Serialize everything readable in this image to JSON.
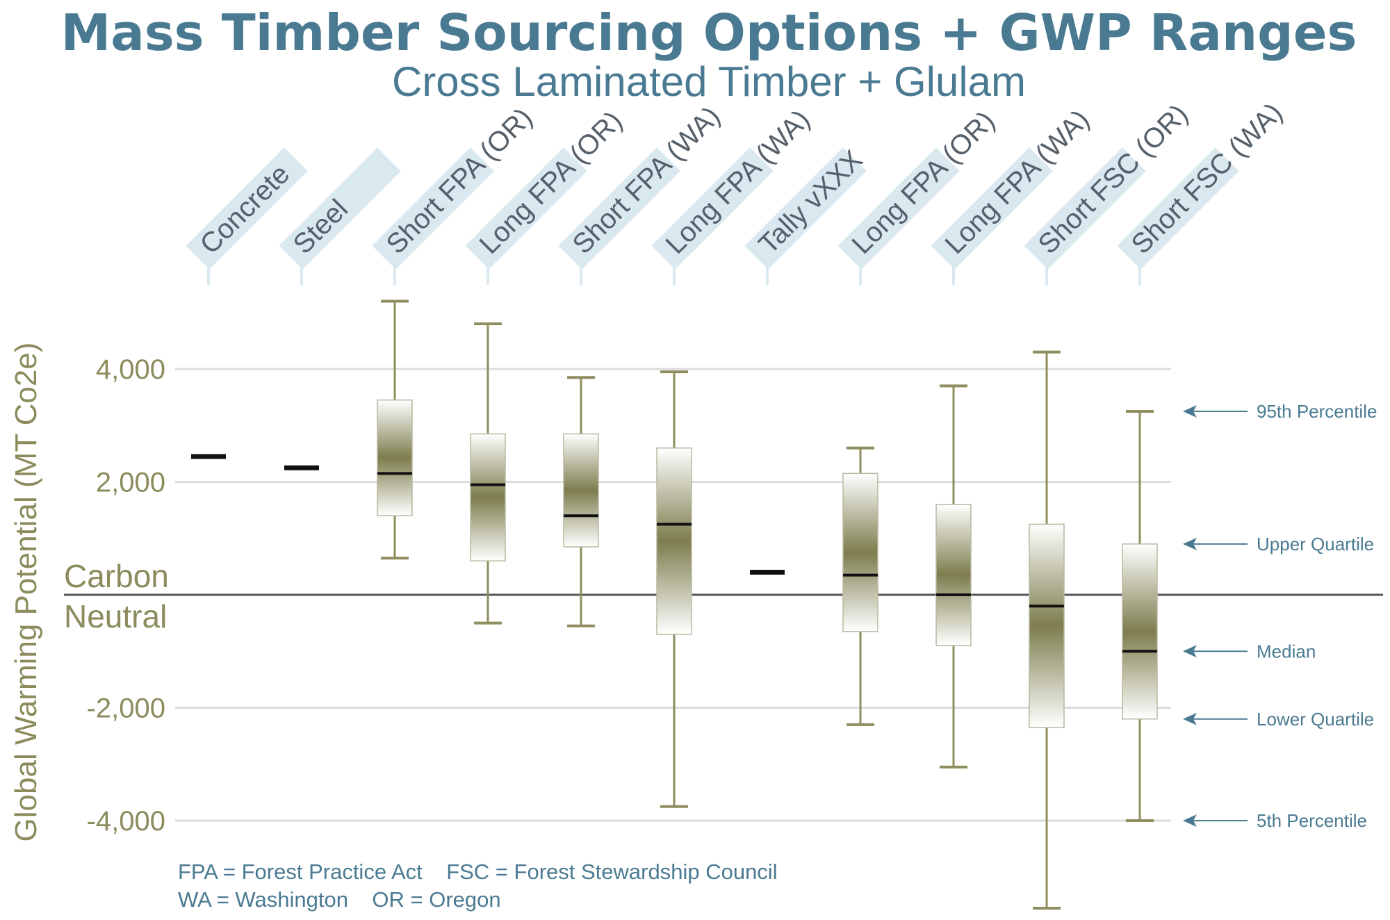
{
  "chart_data": {
    "type": "boxplot",
    "title": "Mass Timber Sourcing Options + GWP Ranges",
    "subtitle": "Cross Laminated Timber + Glulam",
    "ylabel": "Global Warming Potential (MT Co2e)",
    "ylim": [
      -5800,
      5400
    ],
    "yticks": [
      {
        "value": 4000,
        "label": "4,000"
      },
      {
        "value": 2000,
        "label": "2,000"
      },
      {
        "value": -2000,
        "label": "-2,000"
      },
      {
        "value": -4000,
        "label": "-4,000"
      }
    ],
    "zero_line": {
      "value": 0,
      "label_line1": "Carbon",
      "label_line2": "Neutral"
    },
    "categories": [
      {
        "name": "Concrete",
        "kind": "point",
        "value": 2450
      },
      {
        "name": "Steel",
        "kind": "point",
        "value": 2250
      },
      {
        "name": "Short FPA (OR)",
        "kind": "box",
        "p5": 650,
        "q1": 1400,
        "median": 2150,
        "q3": 3450,
        "p95": 5200
      },
      {
        "name": "Long FPA (OR)",
        "kind": "box",
        "p5": -500,
        "q1": 600,
        "median": 1950,
        "q3": 2850,
        "p95": 4800
      },
      {
        "name": "Short FPA (WA)",
        "kind": "box",
        "p5": -550,
        "q1": 850,
        "median": 1400,
        "q3": 2850,
        "p95": 3850
      },
      {
        "name": "Long FPA (WA)",
        "kind": "box",
        "p5": -3750,
        "q1": -700,
        "median": 1250,
        "q3": 2600,
        "p95": 3950
      },
      {
        "name": "Tally vXXX",
        "kind": "point",
        "value": 400
      },
      {
        "name": "Long FPA (OR)",
        "kind": "box",
        "p5": -2300,
        "q1": -650,
        "median": 350,
        "q3": 2150,
        "p95": 2600
      },
      {
        "name": "Long FPA (WA)",
        "kind": "box",
        "p5": -3050,
        "q1": -900,
        "median": 0,
        "q3": 1600,
        "p95": 3700
      },
      {
        "name": "Short FSC (OR)",
        "kind": "box",
        "p5": -5550,
        "q1": -2350,
        "median": -200,
        "q3": 1250,
        "p95": 4300
      },
      {
        "name": "Short FSC (WA)",
        "kind": "box",
        "p5": -4000,
        "q1": -2200,
        "median": -1000,
        "q3": 900,
        "p95": 3250
      }
    ],
    "legend": [
      {
        "label": "95th Percentile",
        "value": 3250
      },
      {
        "label": "Upper Quartile",
        "value": 900
      },
      {
        "label": "Median",
        "value": -1000
      },
      {
        "label": "Lower Quartile",
        "value": -2200
      },
      {
        "label": "5th Percentile",
        "value": -4000
      }
    ],
    "notes": [
      "FPA = Forest Practice Act    FSC = Forest Stewardship Council",
      "WA = Washington    OR = Oregon"
    ]
  },
  "colors": {
    "title": "#4a7a92",
    "axis_text": "#8b8b5c",
    "box_dark": "#7d7d4e",
    "whisker": "#8e8e5e",
    "grid": "#dcdcdc",
    "label_tab": "#dae8f0",
    "zero_line": "#555555"
  }
}
